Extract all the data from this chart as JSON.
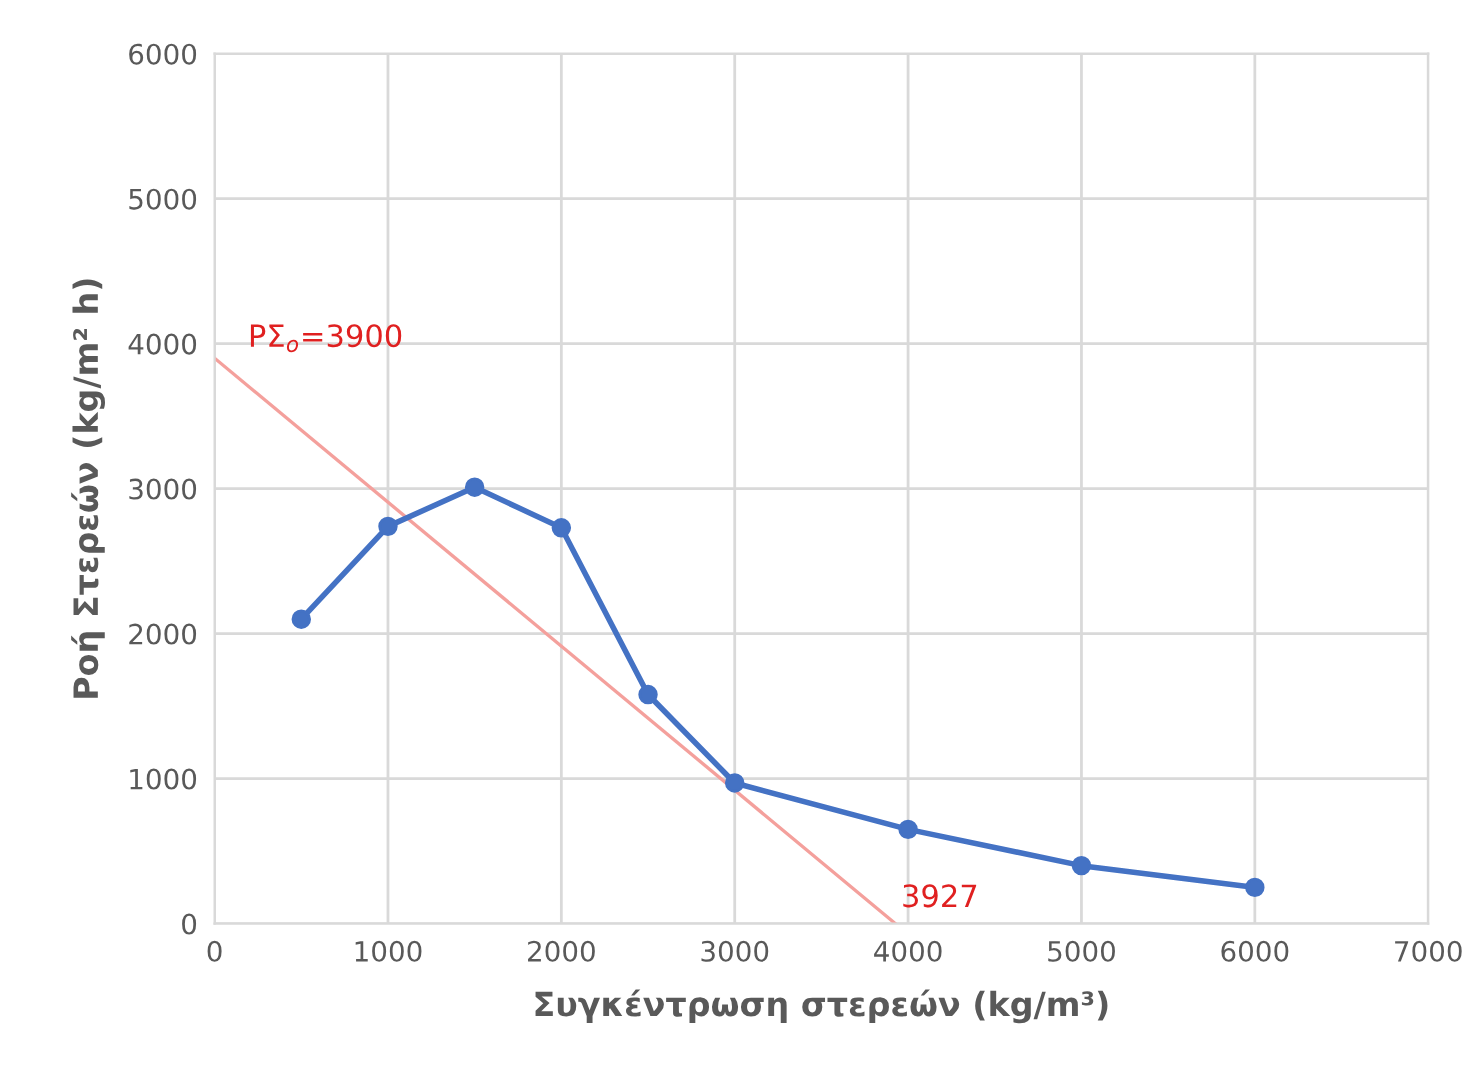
{
  "chart_data": {
    "type": "line",
    "xlabel": "Συγκέντρωση στερεών (kg/m³)",
    "ylabel": "Ροή Στερεών (kg/m² h)",
    "xlim": [
      0,
      7000
    ],
    "xticks": [
      0,
      1000,
      2000,
      3000,
      4000,
      5000,
      6000,
      7000
    ],
    "ylim": [
      0,
      6000
    ],
    "yticks": [
      0,
      1000,
      2000,
      3000,
      4000,
      5000,
      6000
    ],
    "grid": true,
    "legend": false,
    "series": [
      {
        "color": "#4472c4",
        "marker": "circle",
        "x": [
          500,
          1000,
          1500,
          2000,
          2500,
          3000,
          4000,
          5000,
          6000
        ],
        "values": [
          2100,
          2740,
          3010,
          2730,
          1580,
          970,
          650,
          400,
          250
        ]
      },
      {
        "color": "#f4a09c",
        "marker": "none",
        "x": [
          0,
          3927
        ],
        "values": [
          3900,
          0
        ]
      }
    ],
    "annotations": [
      {
        "text": "PΣ$_{o}$=3900",
        "x": 0,
        "y": 3900
      },
      {
        "text": "3927",
        "x": 3927,
        "y": 0
      }
    ]
  }
}
